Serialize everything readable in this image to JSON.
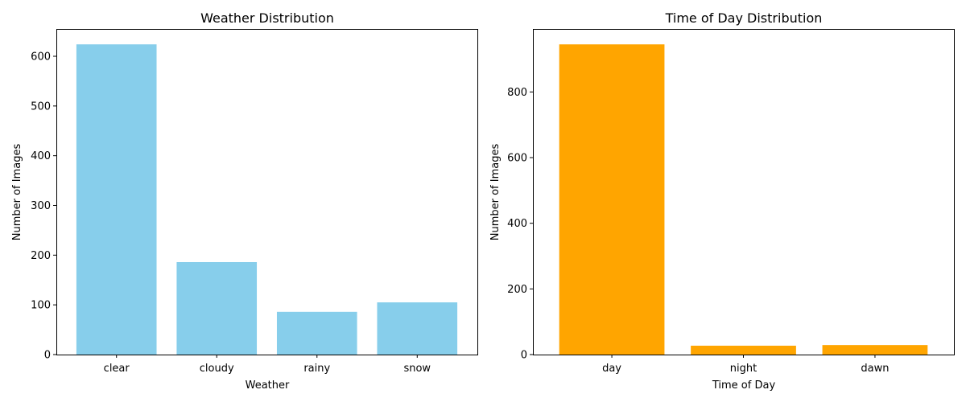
{
  "chart_data": [
    {
      "type": "bar",
      "title": "Weather Distribution",
      "xlabel": "Weather",
      "ylabel": "Number of Images",
      "categories": [
        "clear",
        "cloudy",
        "rainy",
        "snow"
      ],
      "values": [
        624,
        186,
        86,
        105
      ],
      "ylim": [
        0,
        655
      ],
      "yticks": [
        0,
        100,
        200,
        300,
        400,
        500,
        600
      ],
      "bar_color": "#87CEEB",
      "grid": false
    },
    {
      "type": "bar",
      "title": "Time of Day Distribution",
      "xlabel": "Time of Day",
      "ylabel": "Number of Images",
      "categories": [
        "day",
        "night",
        "dawn"
      ],
      "values": [
        945,
        27,
        29
      ],
      "ylim": [
        0,
        992
      ],
      "yticks": [
        0,
        200,
        400,
        600,
        800
      ],
      "bar_color": "#FFA500",
      "grid": false
    }
  ]
}
